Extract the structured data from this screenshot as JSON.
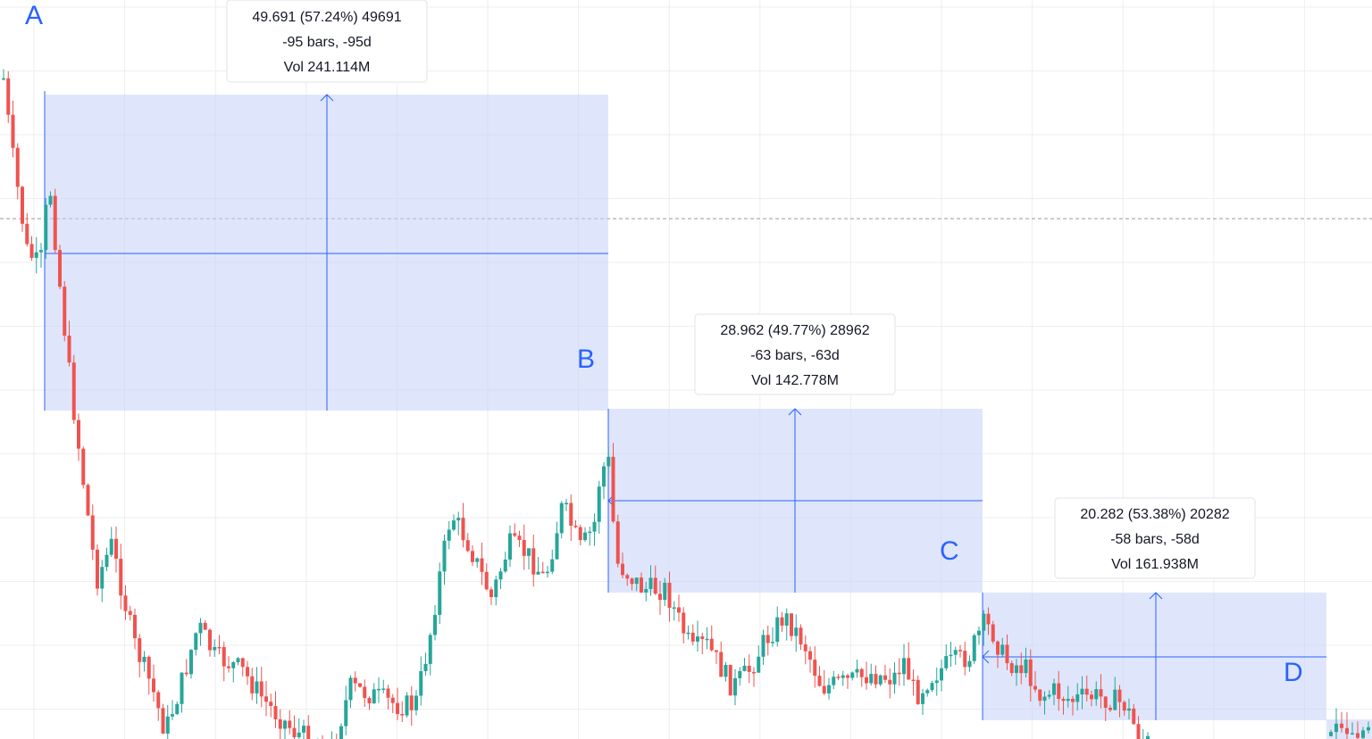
{
  "chart_data": {
    "type": "candlestick",
    "grid": true,
    "colors": {
      "up": "#26a69a",
      "down": "#ef5350",
      "measure_fill": "#c5d2f8",
      "measure_line": "#2962ff",
      "grid": "#eeeeee"
    },
    "point_labels": [
      "A",
      "B",
      "C",
      "D"
    ],
    "measurements": [
      {
        "id": "A-B",
        "change_line": "49.691 (57.24%) 49691",
        "bars_line": "-95 bars, -95d",
        "volume_line": "Vol 241.114M"
      },
      {
        "id": "B-C",
        "change_line": "28.962 (49.77%) 28962",
        "bars_line": "-63 bars, -63d",
        "volume_line": "Vol 142.778M"
      },
      {
        "id": "C-D",
        "change_line": "20.282 (53.38%) 20282",
        "bars_line": "-58 bars, -58d",
        "volume_line": "Vol 161.938M"
      }
    ]
  }
}
